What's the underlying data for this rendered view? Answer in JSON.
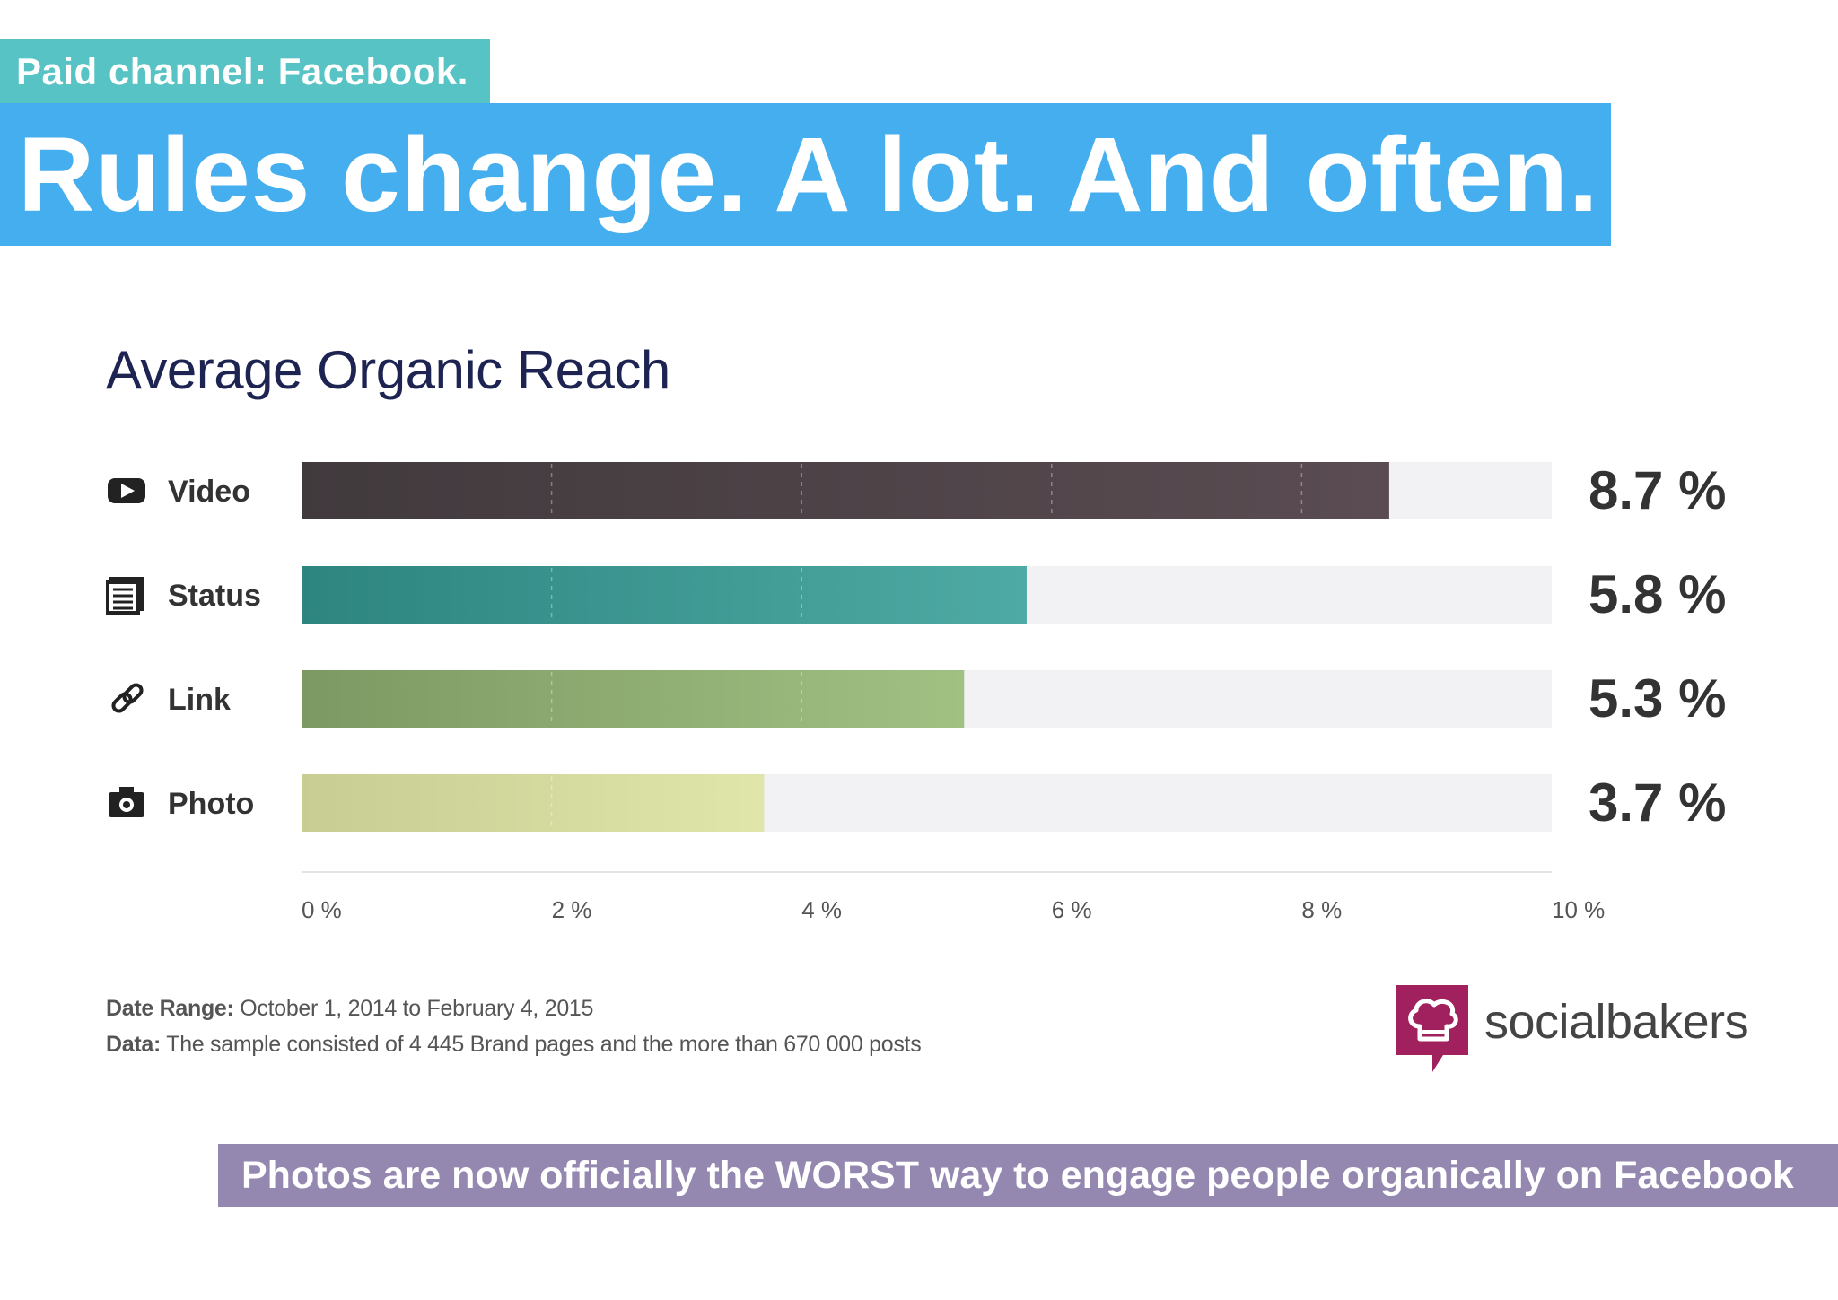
{
  "header": {
    "tag": "Paid channel: Facebook.",
    "headline": "Rules change. A lot. And often."
  },
  "colors": {
    "tag_bg": "#58c3c4",
    "headline_bg": "#44aeee",
    "callout_bg": "#9487b0",
    "bar_track": "#f2f1f3",
    "brand": "#a1215f"
  },
  "chart_data": {
    "type": "bar",
    "orientation": "horizontal",
    "title": "Average Organic Reach",
    "categories": [
      "Video",
      "Status",
      "Link",
      "Photo"
    ],
    "icons": [
      "video-icon",
      "status-icon",
      "link-icon",
      "photo-icon"
    ],
    "values": [
      8.7,
      5.8,
      5.3,
      3.7
    ],
    "value_labels": [
      "8.7 %",
      "5.8 %",
      "5.3 %",
      "3.7 %"
    ],
    "bar_colors": [
      [
        "#413a3d",
        "#5a4c52"
      ],
      [
        "#2e8580",
        "#4eaaa4"
      ],
      [
        "#7c9963",
        "#a1c183"
      ],
      [
        "#c7cd93",
        "#e0e6a9"
      ]
    ],
    "xlim": [
      0,
      10
    ],
    "x_ticks": [
      0,
      2,
      4,
      6,
      8,
      10
    ],
    "x_tick_labels": [
      "0 %",
      "2 %",
      "4 %",
      "6 %",
      "8 %",
      "10 %"
    ],
    "grid": "dashed vertical",
    "legend": "none"
  },
  "footnote": {
    "date_label": "Date Range:",
    "date_value": "October 1, 2014 to February 4, 2015",
    "data_label": "Data:",
    "data_value": "The sample consisted of 4 445 Brand pages and the more than 670 000 posts"
  },
  "brand": {
    "name": "socialbakers",
    "icon": "socialbakers-logo-icon"
  },
  "callout": "Photos are now officially the WORST way to engage people organically on Facebook"
}
